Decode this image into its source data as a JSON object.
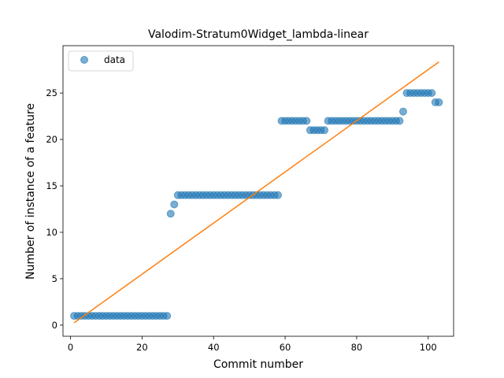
{
  "chart_data": {
    "type": "scatter",
    "title": "Valodim-Stratum0Widget_lambda-linear",
    "xlabel": "Commit number",
    "ylabel": "Number of instance of a feature",
    "xlim": [
      -2.1,
      107.1
    ],
    "ylim": [
      -1.2,
      30.1
    ],
    "x_ticks": [
      0,
      20,
      40,
      60,
      80,
      100
    ],
    "y_ticks": [
      0,
      5,
      10,
      15,
      20,
      25
    ],
    "grid": false,
    "legend": {
      "placement": "top-left",
      "entries": [
        "data"
      ]
    },
    "colors": {
      "points": "#1f77b4",
      "fit": "#ff7f0e"
    },
    "series": [
      {
        "name": "data",
        "kind": "scatter",
        "x": [
          1,
          2,
          3,
          4,
          5,
          6,
          7,
          8,
          9,
          10,
          11,
          12,
          13,
          14,
          15,
          16,
          17,
          18,
          19,
          20,
          21,
          22,
          23,
          24,
          25,
          26,
          27,
          28,
          29,
          30,
          31,
          32,
          33,
          34,
          35,
          36,
          37,
          38,
          39,
          40,
          41,
          42,
          43,
          44,
          45,
          46,
          47,
          48,
          49,
          50,
          51,
          52,
          53,
          54,
          55,
          56,
          57,
          58,
          59,
          60,
          61,
          62,
          63,
          64,
          65,
          66,
          67,
          68,
          69,
          70,
          71,
          72,
          73,
          74,
          75,
          76,
          77,
          78,
          79,
          80,
          81,
          82,
          83,
          84,
          85,
          86,
          87,
          88,
          89,
          90,
          91,
          92,
          93,
          94,
          95,
          96,
          97,
          98,
          99,
          100,
          101,
          102,
          103
        ],
        "y": [
          1,
          1,
          1,
          1,
          1,
          1,
          1,
          1,
          1,
          1,
          1,
          1,
          1,
          1,
          1,
          1,
          1,
          1,
          1,
          1,
          1,
          1,
          1,
          1,
          1,
          1,
          1,
          12,
          13,
          14,
          14,
          14,
          14,
          14,
          14,
          14,
          14,
          14,
          14,
          14,
          14,
          14,
          14,
          14,
          14,
          14,
          14,
          14,
          14,
          14,
          14,
          14,
          14,
          14,
          14,
          14,
          14,
          14,
          22,
          22,
          22,
          22,
          22,
          22,
          22,
          22,
          21,
          21,
          21,
          21,
          21,
          22,
          22,
          22,
          22,
          22,
          22,
          22,
          22,
          22,
          22,
          22,
          22,
          22,
          22,
          22,
          22,
          22,
          22,
          22,
          22,
          22,
          23,
          25,
          25,
          25,
          25,
          25,
          25,
          25,
          25,
          24,
          24
        ]
      },
      {
        "kind": "line",
        "x": [
          1,
          103
        ],
        "y": [
          0.25,
          28.35
        ]
      }
    ]
  }
}
